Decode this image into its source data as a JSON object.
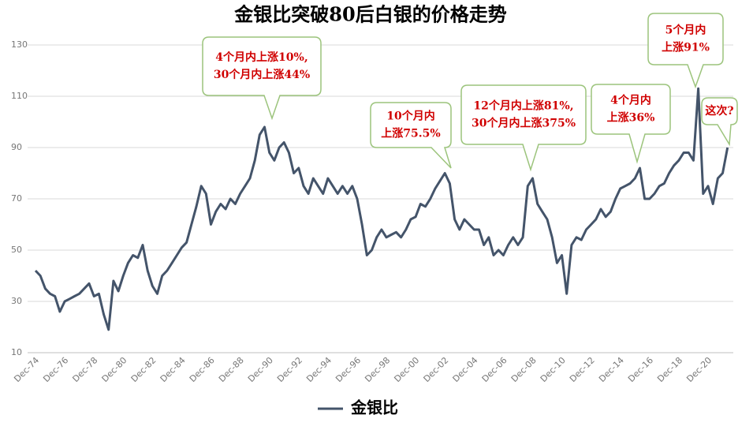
{
  "chart_data": {
    "type": "line",
    "title": "金银比突破80后白银的价格走势",
    "categories": [
      "Dec-74",
      null,
      null,
      null,
      null,
      null,
      "Dec-76",
      null,
      null,
      null,
      null,
      null,
      "Dec-78",
      null,
      null,
      null,
      null,
      null,
      "Dec-80",
      null,
      null,
      null,
      null,
      null,
      "Dec-82",
      null,
      null,
      null,
      null,
      null,
      "Dec-84",
      null,
      null,
      null,
      null,
      null,
      "Dec-86",
      null,
      null,
      null,
      null,
      null,
      "Dec-88",
      null,
      null,
      null,
      null,
      null,
      "Dec-90",
      null,
      null,
      null,
      null,
      null,
      "Dec-92",
      null,
      null,
      null,
      null,
      null,
      "Dec-94",
      null,
      null,
      null,
      null,
      null,
      "Dec-96",
      null,
      null,
      null,
      null,
      null,
      "Dec-98",
      null,
      null,
      null,
      null,
      null,
      "Dec-00",
      null,
      null,
      null,
      null,
      null,
      "Dec-02",
      null,
      null,
      null,
      null,
      null,
      "Dec-04",
      null,
      null,
      null,
      null,
      null,
      "Dec-06",
      null,
      null,
      null,
      null,
      null,
      "Dec-08",
      null,
      null,
      null,
      null,
      null,
      "Dec-10",
      null,
      null,
      null,
      null,
      null,
      "Dec-12",
      null,
      null,
      null,
      null,
      null,
      "Dec-14",
      null,
      null,
      null,
      null,
      null,
      "Dec-16",
      null,
      null,
      null,
      null,
      null,
      "Dec-18",
      null,
      null,
      null,
      null,
      null,
      "Dec-20",
      null,
      null,
      null,
      null
    ],
    "series": [
      {
        "name": "金银比",
        "color": "#44546a",
        "values": [
          42,
          40,
          35,
          33,
          32,
          26,
          30,
          31,
          32,
          33,
          35,
          37,
          32,
          33,
          25,
          19,
          38,
          34,
          40,
          45,
          48,
          47,
          52,
          42,
          36,
          33,
          40,
          42,
          45,
          48,
          51,
          53,
          60,
          67,
          75,
          72,
          60,
          65,
          68,
          66,
          70,
          68,
          72,
          75,
          78,
          85,
          95,
          98,
          88,
          85,
          90,
          92,
          88,
          80,
          82,
          75,
          72,
          78,
          75,
          72,
          78,
          75,
          72,
          75,
          72,
          75,
          70,
          60,
          48,
          50,
          55,
          58,
          55,
          56,
          57,
          55,
          58,
          62,
          63,
          68,
          67,
          70,
          74,
          77,
          80,
          76,
          62,
          58,
          62,
          60,
          58,
          58,
          52,
          55,
          48,
          50,
          48,
          52,
          55,
          52,
          55,
          75,
          78,
          68,
          65,
          62,
          55,
          45,
          48,
          33,
          52,
          55,
          54,
          58,
          60,
          62,
          66,
          63,
          65,
          70,
          74,
          75,
          76,
          78,
          82,
          70,
          70,
          72,
          75,
          76,
          80,
          83,
          85,
          88,
          88,
          85,
          113,
          72,
          75,
          68,
          78,
          80,
          90
        ]
      }
    ],
    "ylim": [
      10,
      130
    ],
    "yticks": [
      10,
      30,
      50,
      70,
      90,
      110,
      130
    ],
    "grid": true,
    "annotations": [
      {
        "lines": [
          "4个月内上涨10%,",
          "30个月内上涨44%"
        ]
      },
      {
        "lines": [
          "10个月内",
          "上涨75.5%"
        ]
      },
      {
        "lines": [
          "12个月内上涨81%,",
          "30个月内上涨375%"
        ]
      },
      {
        "lines": [
          "4个月内",
          "上涨36%"
        ]
      },
      {
        "lines": [
          "5个月内",
          "上涨91%"
        ]
      },
      {
        "lines": [
          "这次?"
        ]
      }
    ]
  }
}
